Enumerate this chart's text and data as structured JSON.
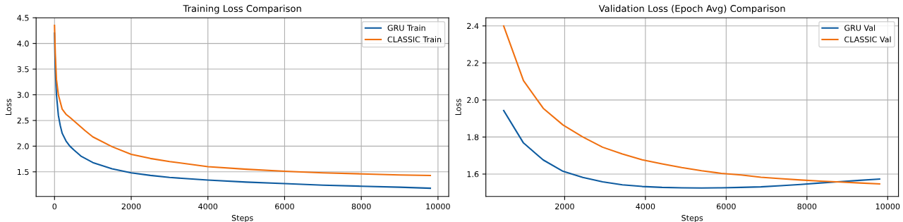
{
  "chart_data": [
    {
      "type": "line",
      "title": "Training Loss Comparison",
      "xlabel": "Steps",
      "ylabel": "Loss",
      "xlim": [
        -480,
        10280
      ],
      "ylim": [
        1.02,
        4.5
      ],
      "xticks": [
        0,
        2000,
        4000,
        6000,
        8000,
        10000
      ],
      "yticks": [
        1.5,
        {
          "value": 2,
          "label": "2.0"
        },
        2.5,
        {
          "value": 3,
          "label": "3.0"
        },
        3.5,
        {
          "value": 4,
          "label": "4.0"
        },
        4.5
      ],
      "grid": true,
      "legend": "top right",
      "series": [
        {
          "name": "GRU Train",
          "color": "#0f5ca0",
          "x": [
            0,
            20,
            50,
            100,
            150,
            200,
            300,
            400,
            500,
            700,
            1000,
            1500,
            2000,
            2500,
            3000,
            4000,
            5000,
            6000,
            7000,
            8000,
            9000,
            9800
          ],
          "values": [
            4.2,
            3.5,
            3.0,
            2.6,
            2.4,
            2.25,
            2.1,
            2.0,
            1.93,
            1.8,
            1.68,
            1.56,
            1.48,
            1.43,
            1.39,
            1.34,
            1.3,
            1.27,
            1.24,
            1.22,
            1.2,
            1.18
          ]
        },
        {
          "name": "CLASSIC Train",
          "color": "#f07010",
          "x": [
            0,
            20,
            50,
            100,
            200,
            300,
            400,
            600,
            800,
            1000,
            1500,
            2000,
            2500,
            3000,
            4000,
            5000,
            6000,
            7000,
            8000,
            9000,
            9800
          ],
          "values": [
            4.35,
            3.8,
            3.3,
            3.0,
            2.72,
            2.62,
            2.56,
            2.43,
            2.3,
            2.18,
            1.99,
            1.84,
            1.76,
            1.7,
            1.6,
            1.55,
            1.51,
            1.48,
            1.46,
            1.44,
            1.43
          ]
        }
      ]
    },
    {
      "type": "line",
      "title": "Validation Loss (Epoch Avg) Comparison",
      "xlabel": "Steps",
      "ylabel": "Loss",
      "xlim": [
        49,
        10267
      ],
      "ylim": [
        1.479,
        2.444
      ],
      "xticks": [
        2000,
        4000,
        6000,
        8000,
        10000
      ],
      "yticks": [
        1.6,
        1.8,
        {
          "value": 2,
          "label": "2.0"
        },
        2.2,
        2.4
      ],
      "grid": true,
      "legend": "top right",
      "x": [
        490,
        980,
        1470,
        1960,
        2450,
        2940,
        3430,
        3920,
        4410,
        4900,
        5390,
        5880,
        6370,
        6860,
        7350,
        7840,
        8330,
        8820,
        9310,
        9800
      ],
      "series": [
        {
          "name": "GRU Val",
          "color": "#0f5ca0",
          "values": [
            1.943,
            1.768,
            1.676,
            1.615,
            1.582,
            1.558,
            1.542,
            1.533,
            1.528,
            1.526,
            1.525,
            1.526,
            1.528,
            1.531,
            1.537,
            1.544,
            1.552,
            1.559,
            1.566,
            1.573
          ]
        },
        {
          "name": "CLASSIC Val",
          "color": "#f07010",
          "values": [
            2.4,
            2.105,
            1.955,
            1.865,
            1.8,
            1.745,
            1.708,
            1.677,
            1.655,
            1.635,
            1.618,
            1.604,
            1.595,
            1.583,
            1.575,
            1.568,
            1.562,
            1.557,
            1.552,
            1.547
          ]
        }
      ]
    }
  ]
}
